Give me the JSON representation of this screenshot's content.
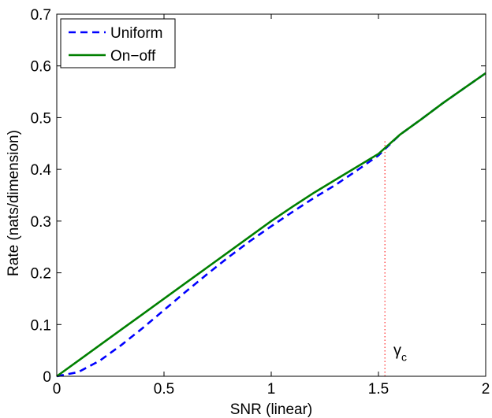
{
  "chart_data": {
    "type": "line",
    "xlabel": "SNR (linear)",
    "ylabel": "Rate (nats/dimension)",
    "xlim": [
      0,
      2
    ],
    "ylim": [
      0,
      0.7
    ],
    "xticks": [
      0,
      0.5,
      1,
      1.5,
      2
    ],
    "xtick_labels": [
      "0",
      "0.5",
      "1",
      "1.5",
      "2"
    ],
    "yticks": [
      0,
      0.1,
      0.2,
      0.3,
      0.4,
      0.5,
      0.6,
      0.7
    ],
    "ytick_labels": [
      "0",
      "0.1",
      "0.2",
      "0.3",
      "0.4",
      "0.5",
      "0.6",
      "0.7"
    ],
    "grid": false,
    "legend_position": "top-left",
    "series": [
      {
        "name": "Uniform",
        "style": "dashed",
        "color": "#0000ff",
        "x": [
          0,
          0.1,
          0.2,
          0.3,
          0.4,
          0.5,
          0.6,
          0.7,
          0.8,
          0.9,
          1.0,
          1.1,
          1.2,
          1.3,
          1.4,
          1.5,
          1.6,
          1.7,
          1.8,
          1.9,
          2.0
        ],
        "y": [
          0,
          0.008,
          0.03,
          0.06,
          0.093,
          0.128,
          0.163,
          0.197,
          0.23,
          0.261,
          0.29,
          0.318,
          0.345,
          0.37,
          0.398,
          0.427,
          0.467,
          0.497,
          0.528,
          0.557,
          0.586
        ]
      },
      {
        "name": "On−off",
        "style": "solid",
        "color": "#008000",
        "x": [
          0,
          0.1,
          0.2,
          0.3,
          0.4,
          0.5,
          0.6,
          0.7,
          0.8,
          0.9,
          1.0,
          1.1,
          1.2,
          1.3,
          1.4,
          1.5,
          1.6,
          1.7,
          1.8,
          1.9,
          2.0
        ],
        "y": [
          0,
          0.03,
          0.06,
          0.09,
          0.12,
          0.15,
          0.18,
          0.21,
          0.24,
          0.27,
          0.3,
          0.328,
          0.355,
          0.38,
          0.405,
          0.43,
          0.467,
          0.497,
          0.528,
          0.557,
          0.586
        ]
      }
    ],
    "annotations": [
      {
        "type": "vline",
        "x": 1.53,
        "y_top": 0.455,
        "style": "dotted",
        "color": "#ff0000"
      },
      {
        "type": "text",
        "text": "γ",
        "subscript": "c",
        "x": 1.57,
        "y": 0.04
      }
    ]
  }
}
